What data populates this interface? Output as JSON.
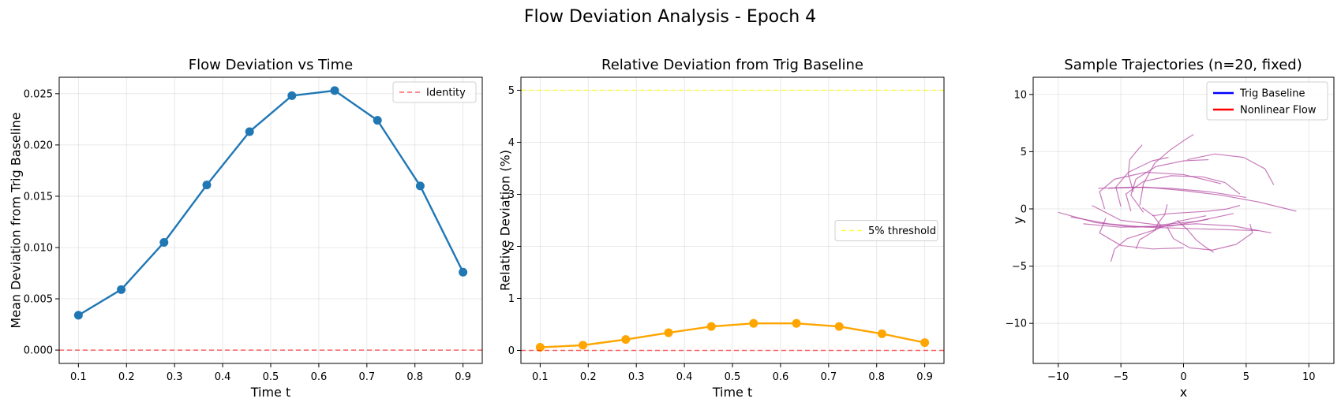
{
  "figure": {
    "title": "Flow Deviation Analysis - Epoch 4"
  },
  "chart_data": [
    {
      "type": "line",
      "title": "Flow Deviation vs Time",
      "xlabel": "Time t",
      "ylabel": "Mean Deviation from Trig Baseline",
      "xlim": [
        0.06,
        0.94
      ],
      "ylim": [
        -0.0013,
        0.0266
      ],
      "xticks": [
        0.1,
        0.2,
        0.3,
        0.4,
        0.5,
        0.6,
        0.7,
        0.8,
        0.9
      ],
      "xtick_labels": [
        "0.1",
        "0.2",
        "0.3",
        "0.4",
        "0.5",
        "0.6",
        "0.7",
        "0.8",
        "0.9"
      ],
      "yticks": [
        0,
        0.005,
        0.01,
        0.015,
        0.02,
        0.025
      ],
      "ytick_labels": [
        "0.000",
        "0.005",
        "0.010",
        "0.015",
        "0.020",
        "0.025"
      ],
      "grid": true,
      "legend": "top-right",
      "series": [
        {
          "kind": "line-markers",
          "color": "#1f77b4",
          "x": [
            0.1,
            0.189,
            0.278,
            0.367,
            0.456,
            0.544,
            0.633,
            0.722,
            0.811,
            0.9
          ],
          "values": [
            0.0034,
            0.0059,
            0.0105,
            0.0161,
            0.0213,
            0.0248,
            0.0253,
            0.0224,
            0.016,
            0.0076
          ]
        },
        {
          "kind": "hline",
          "name": "Identity",
          "y": 0,
          "color": "#ff0000",
          "dash": "6,4",
          "opacity": 0.6
        }
      ]
    },
    {
      "type": "line",
      "title": "Relative Deviation from Trig Baseline",
      "xlabel": "Time t",
      "ylabel": "Relative Deviation (%)",
      "xlim": [
        0.06,
        0.94
      ],
      "ylim": [
        -0.25,
        5.25
      ],
      "xticks": [
        0.1,
        0.2,
        0.3,
        0.4,
        0.5,
        0.6,
        0.7,
        0.8,
        0.9
      ],
      "xtick_labels": [
        "0.1",
        "0.2",
        "0.3",
        "0.4",
        "0.5",
        "0.6",
        "0.7",
        "0.8",
        "0.9"
      ],
      "yticks": [
        0,
        1,
        2,
        3,
        4,
        5
      ],
      "ytick_labels": [
        "0",
        "1",
        "2",
        "3",
        "4",
        "5"
      ],
      "grid": true,
      "legend": "center-right",
      "series": [
        {
          "kind": "line-markers",
          "color": "#ffa500",
          "x": [
            0.1,
            0.189,
            0.278,
            0.367,
            0.456,
            0.544,
            0.633,
            0.722,
            0.811,
            0.9
          ],
          "values": [
            0.06,
            0.1,
            0.21,
            0.34,
            0.46,
            0.52,
            0.52,
            0.46,
            0.32,
            0.15
          ]
        },
        {
          "kind": "hline",
          "name": "5% threshold",
          "y": 5,
          "color": "#ffff00",
          "dash": "6,4",
          "opacity": 0.7
        },
        {
          "kind": "hline",
          "y": 0,
          "color": "#ff0000",
          "dash": "6,4",
          "opacity": 0.6
        }
      ]
    },
    {
      "type": "line",
      "title": "Sample Trajectories (n=20, fixed)",
      "xlabel": "x",
      "ylabel": "y",
      "xlim": [
        -12,
        12
      ],
      "ylim": [
        -13.5,
        11.5
      ],
      "xticks": [
        -10,
        -5,
        0,
        5,
        10
      ],
      "xtick_labels": [
        "−10",
        "−5",
        "0",
        "5",
        "10"
      ],
      "yticks": [
        -10,
        -5,
        0,
        5,
        10
      ],
      "ytick_labels": [
        "−10",
        "−5",
        "0",
        "5",
        "10"
      ],
      "grid": true,
      "legend": "top-right",
      "legend_entries": [
        {
          "name": "Trig Baseline",
          "color": "#0000ff"
        },
        {
          "name": "Nonlinear Flow",
          "color": "#ff0000"
        }
      ],
      "trajectory_color": "#b0449e",
      "series": [
        {
          "x": [
            -10,
            -7,
            -4,
            -1,
            2
          ],
          "values": [
            -0.3,
            -1.2,
            -1.6,
            -1.5,
            -0.9
          ]
        },
        {
          "x": [
            -7.3,
            -5,
            -2,
            1,
            4
          ],
          "values": [
            0.3,
            -1.0,
            -1.4,
            -1.1,
            -0.4
          ]
        },
        {
          "x": [
            -9,
            -6,
            -3,
            0,
            3,
            6
          ],
          "values": [
            -0.7,
            -1.3,
            -1.6,
            -1.7,
            -1.8,
            -1.9
          ]
        },
        {
          "x": [
            -8,
            -5,
            -2,
            1,
            4,
            7
          ],
          "values": [
            -1.3,
            -1.6,
            -1.5,
            -1.3,
            -1.5,
            -2.1
          ]
        },
        {
          "x": [
            -6.8,
            -4,
            -1,
            2,
            5
          ],
          "values": [
            1.8,
            1.9,
            1.8,
            1.5,
            1.0
          ]
        },
        {
          "x": [
            -6,
            -3,
            0,
            3,
            6,
            9
          ],
          "values": [
            1.8,
            1.9,
            1.6,
            1.2,
            0.6,
            -0.2
          ]
        },
        {
          "x": [
            -6.3,
            -6.7,
            -5.5,
            -3,
            0,
            3
          ],
          "values": [
            0,
            1.5,
            2.6,
            3.2,
            3.0,
            2.2
          ]
        },
        {
          "x": [
            -4.2,
            -4.6,
            -3.2,
            -1,
            1.5,
            3.3,
            4.5
          ],
          "values": [
            -0.2,
            1.3,
            2.4,
            2.9,
            2.8,
            2.3,
            1.3
          ]
        },
        {
          "x": [
            -5,
            -5.4,
            -4.4,
            -2.5,
            -1.2
          ],
          "values": [
            0.2,
            1.9,
            3.2,
            4.2,
            4.5
          ]
        },
        {
          "x": [
            -3.2,
            -4.2,
            -3.8,
            -2.2,
            0,
            2
          ],
          "values": [
            -0.3,
            1.2,
            2.6,
            3.7,
            4.2,
            4.3
          ]
        },
        {
          "x": [
            -3.5,
            -3.2,
            -2.3,
            -1,
            0.2,
            0.8
          ],
          "values": [
            0.3,
            2.2,
            4.0,
            5.2,
            6.1,
            6.5
          ]
        },
        {
          "x": [
            -4,
            -4.4,
            -4.3,
            -3.7,
            -3.3
          ],
          "values": [
            1.5,
            3.0,
            4.3,
            5.1,
            5.6
          ]
        },
        {
          "x": [
            -2.5,
            -1,
            0.5,
            2,
            3.5,
            4.5
          ],
          "values": [
            -0.6,
            -0.4,
            -0.3,
            -0.2,
            0,
            0.3
          ]
        },
        {
          "x": [
            0.3,
            2.5,
            4.8,
            6.5,
            7.2
          ],
          "values": [
            4.3,
            4.8,
            4.5,
            3.5,
            2.1
          ]
        },
        {
          "x": [
            -3.8,
            -3.5,
            -2.6,
            -1.8,
            -2.4,
            -3.3
          ],
          "values": [
            -3.5,
            -2.7,
            -2.1,
            -1.5,
            -0.6,
            0.1
          ]
        },
        {
          "x": [
            -1.3,
            -0.8,
            0.5,
            2.3,
            4.2,
            5.5,
            5.3
          ],
          "values": [
            -1.6,
            -2.6,
            -3.4,
            -3.6,
            -3.1,
            -2.1,
            -1.3
          ]
        },
        {
          "x": [
            -0.5,
            0.3,
            1.0,
            1.7,
            2.4
          ],
          "values": [
            -1.0,
            -1.8,
            -2.7,
            -3.3,
            -3.8
          ]
        },
        {
          "x": [
            -2.3,
            -2,
            -1.5,
            -1.3
          ],
          "values": [
            -1.9,
            -1.2,
            -0.5,
            0.4
          ]
        },
        {
          "x": [
            -5.8,
            -5.5,
            -4.5,
            -2.5,
            -0.5,
            1.8
          ],
          "values": [
            -4.6,
            -3.5,
            -2.6,
            -1.9,
            -1.1,
            -0.6
          ]
        },
        {
          "x": [
            -6.2,
            -6.7,
            -5,
            -2.5,
            0
          ],
          "values": [
            -0.8,
            -2.1,
            -3.2,
            -3.5,
            -3.4
          ]
        }
      ]
    }
  ]
}
